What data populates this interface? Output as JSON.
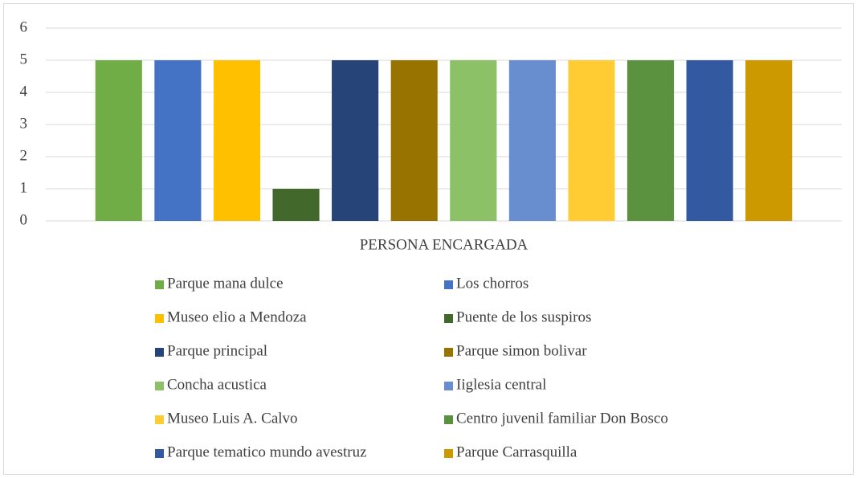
{
  "chart_data": {
    "type": "bar",
    "categories": [
      "PERSONA ENCARGADA"
    ],
    "series": [
      {
        "name": "Parque mana dulce",
        "color": "#70ad47",
        "values": [
          5
        ]
      },
      {
        "name": "Los chorros",
        "color": "#4472c4",
        "values": [
          5
        ]
      },
      {
        "name": "Museo elio a Mendoza",
        "color": "#ffc000",
        "values": [
          5
        ]
      },
      {
        "name": "Puente de los suspiros",
        "color": "#43682b",
        "values": [
          1
        ]
      },
      {
        "name": "Parque principal",
        "color": "#264478",
        "values": [
          5
        ]
      },
      {
        "name": "Parque simon bolivar",
        "color": "#997300",
        "values": [
          5
        ]
      },
      {
        "name": "Concha acustica",
        "color": "#8cc168",
        "values": [
          5
        ]
      },
      {
        "name": "Iiglesia central",
        "color": "#698ed0",
        "values": [
          5
        ]
      },
      {
        "name": "Museo Luis A. Calvo",
        "color": "#ffcd33",
        "values": [
          5
        ]
      },
      {
        "name": "Centro juvenil familiar Don Bosco",
        "color": "#5b9240",
        "values": [
          5
        ]
      },
      {
        "name": "Parque tematico mundo avestruz",
        "color": "#335aa1",
        "values": [
          5
        ]
      },
      {
        "name": "Parque Carrasquilla",
        "color": "#cc9a00",
        "values": [
          5
        ]
      }
    ],
    "ylim": [
      0,
      6
    ],
    "yticks": [
      0,
      1,
      2,
      3,
      4,
      5,
      6
    ],
    "grid": true,
    "legend": "bottom"
  }
}
